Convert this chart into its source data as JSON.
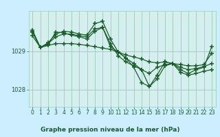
{
  "title": "Graphe pression niveau de la mer (hPa)",
  "bg_color": "#cceeff",
  "plot_bg_color": "#d5efef",
  "grid_color": "#99ccbb",
  "line_color": "#1a5c2a",
  "marker": "+",
  "markersize": 4,
  "linewidth": 0.9,
  "markeredgewidth": 1.1,
  "xlim": [
    -0.5,
    23.5
  ],
  "ylim": [
    1027.55,
    1030.05
  ],
  "yticks": [
    1028,
    1029
  ],
  "xticks": [
    0,
    1,
    2,
    3,
    4,
    5,
    6,
    7,
    8,
    9,
    10,
    11,
    12,
    13,
    14,
    15,
    16,
    17,
    18,
    19,
    20,
    21,
    22,
    23
  ],
  "ylabel_fontsize": 6,
  "xlabel_fontsize": 6.5,
  "tick_fontsize": 5.5,
  "series": [
    {
      "x": [
        0,
        1,
        2,
        3,
        4,
        5,
        6,
        7,
        8,
        9,
        10,
        11,
        12,
        13,
        14,
        15,
        16,
        17,
        18,
        19,
        20,
        21,
        22,
        23
      ],
      "y": [
        1029.4,
        1029.1,
        1029.15,
        1029.2,
        1029.2,
        1029.2,
        1029.18,
        1029.15,
        1029.12,
        1029.08,
        1029.05,
        1028.98,
        1028.9,
        1028.85,
        1028.8,
        1028.72,
        1028.7,
        1028.72,
        1028.68,
        1028.65,
        1028.62,
        1028.62,
        1028.65,
        1028.95
      ]
    },
    {
      "x": [
        0,
        1,
        2,
        3,
        4,
        5,
        6,
        7,
        8,
        9,
        10,
        11,
        12,
        13,
        14,
        15,
        16,
        17,
        18,
        19,
        20,
        21,
        22,
        23
      ],
      "y": [
        1029.5,
        1029.1,
        1029.2,
        1029.38,
        1029.45,
        1029.45,
        1029.4,
        1029.38,
        1029.58,
        1029.62,
        1029.2,
        1028.88,
        1028.72,
        1028.62,
        1028.52,
        1028.42,
        1028.58,
        1028.65,
        1028.68,
        1028.58,
        1028.52,
        1028.55,
        1028.6,
        1028.68
      ]
    },
    {
      "x": [
        0,
        1,
        2,
        3,
        4,
        5,
        6,
        7,
        8,
        9,
        10,
        11,
        12,
        13,
        14,
        15,
        16,
        17,
        18,
        19,
        20,
        21,
        22,
        23
      ],
      "y": [
        1029.52,
        1029.1,
        1029.22,
        1029.45,
        1029.52,
        1029.5,
        1029.45,
        1029.42,
        1029.72,
        1029.78,
        1029.32,
        1028.98,
        1028.82,
        1028.58,
        1028.18,
        1028.08,
        1028.28,
        1028.62,
        1028.68,
        1028.45,
        1028.38,
        1028.42,
        1028.48,
        1028.52
      ]
    },
    {
      "x": [
        0,
        1,
        2,
        3,
        4,
        5,
        6,
        7,
        8,
        9,
        10,
        11,
        12,
        13,
        14,
        15,
        16,
        17,
        18,
        19,
        20,
        21,
        22,
        23
      ],
      "y": [
        1029.55,
        1029.1,
        1029.18,
        1029.5,
        1029.48,
        1029.42,
        1029.38,
        1029.32,
        1029.52,
        1029.62,
        1029.12,
        1028.98,
        1028.82,
        1028.68,
        1028.52,
        1028.08,
        1028.38,
        1028.72,
        1028.68,
        1028.52,
        1028.42,
        1028.52,
        1028.58,
        1029.12
      ]
    }
  ]
}
